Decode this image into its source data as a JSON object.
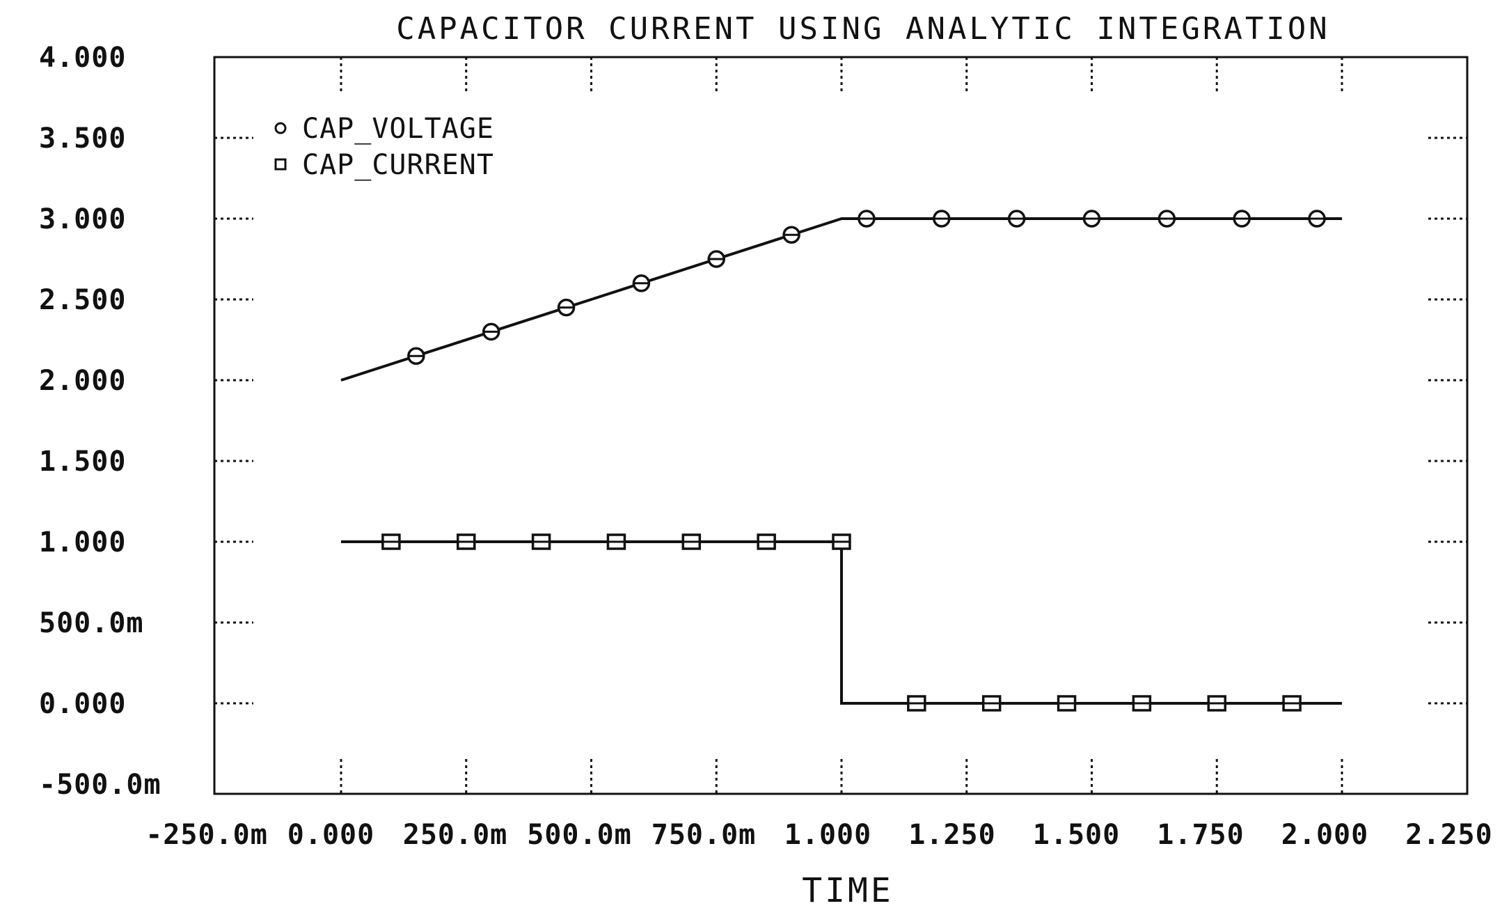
{
  "chart_data": {
    "type": "line",
    "title": "CAPACITOR CURRENT USING ANALYTIC INTEGRATION",
    "xlabel": "TIME",
    "ylabel": "",
    "xlim": [
      -0.25,
      2.25
    ],
    "ylim": [
      -0.5,
      4.0
    ],
    "x_ticks": [
      -0.25,
      0.0,
      0.25,
      0.5,
      0.75,
      1.0,
      1.25,
      1.5,
      1.75,
      2.0,
      2.25
    ],
    "x_tick_labels": [
      "-250.0m",
      "0.000",
      "250.0m",
      "500.0m",
      "750.0m",
      "1.000",
      "1.250",
      "1.500",
      "1.750",
      "2.000",
      "2.250"
    ],
    "y_ticks": [
      4.0,
      3.5,
      3.0,
      2.5,
      2.0,
      1.5,
      1.0,
      0.5,
      0.0,
      -0.5
    ],
    "y_tick_labels": [
      "4.000",
      "3.500",
      "3.000",
      "2.500",
      "2.000",
      "1.500",
      "1.000",
      "500.0m",
      "0.000",
      "-500.0m"
    ],
    "grid": "dotted tick marks",
    "legend": "top-left",
    "series": [
      {
        "name": "CAP_VOLTAGE",
        "marker": "circle",
        "x": [
          0.0,
          1.0,
          2.0
        ],
        "y": [
          2.0,
          3.0,
          3.0
        ],
        "marker_x": [
          0.15,
          0.3,
          0.45,
          0.6,
          0.75,
          0.9,
          1.05,
          1.2,
          1.35,
          1.5,
          1.65,
          1.8,
          1.95
        ],
        "marker_y": [
          2.15,
          2.3,
          2.45,
          2.6,
          2.75,
          2.9,
          3.0,
          3.0,
          3.0,
          3.0,
          3.0,
          3.0,
          3.0
        ]
      },
      {
        "name": "CAP_CURRENT",
        "marker": "square",
        "x": [
          0.0,
          1.0,
          1.0,
          2.0
        ],
        "y": [
          1.0,
          1.0,
          0.0,
          0.0
        ],
        "marker_x": [
          0.1,
          0.25,
          0.4,
          0.55,
          0.7,
          0.85,
          1.0,
          1.15,
          1.3,
          1.45,
          1.6,
          1.75,
          1.9
        ],
        "marker_y": [
          1.0,
          1.0,
          1.0,
          1.0,
          1.0,
          1.0,
          1.0,
          0.0,
          0.0,
          0.0,
          0.0,
          0.0,
          0.0
        ]
      }
    ],
    "colors": {
      "line": "#111111",
      "background": "#ffffff"
    }
  }
}
